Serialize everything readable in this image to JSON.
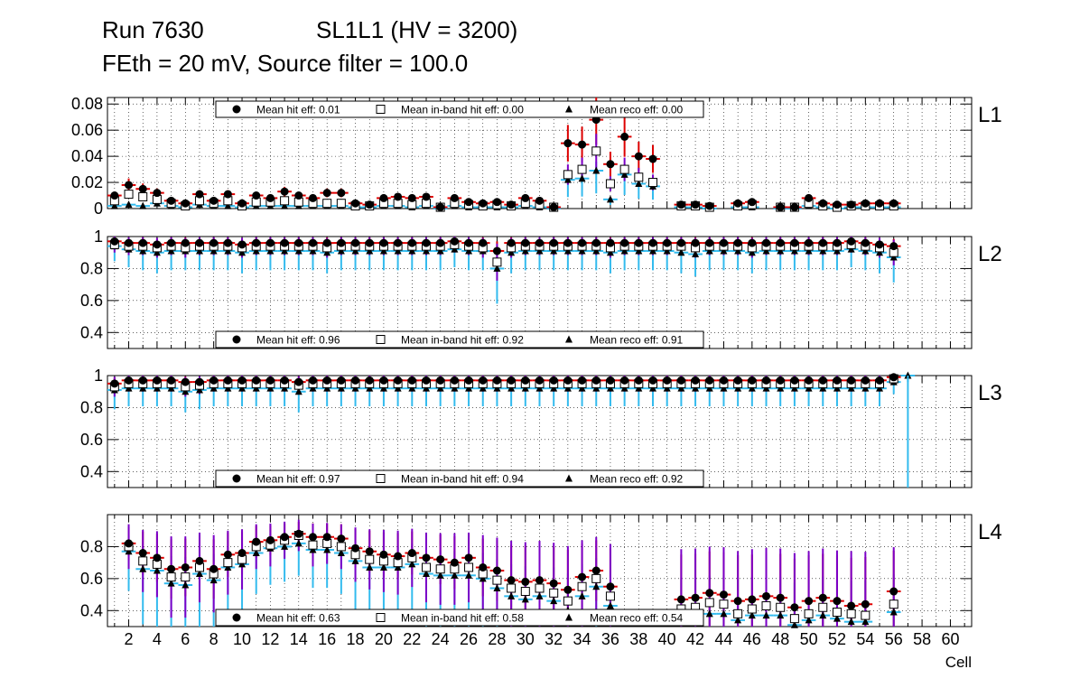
{
  "title": {
    "run": "Run 7630",
    "layer": "SL1L1 (HV = 3200)",
    "line2": "FEth = 20 mV, Source filter = 100.0"
  },
  "xlabel": "Cell",
  "x_ticks": [
    2,
    4,
    6,
    8,
    10,
    12,
    14,
    16,
    18,
    20,
    22,
    24,
    26,
    28,
    30,
    32,
    34,
    36,
    38,
    40,
    42,
    44,
    46,
    48,
    50,
    52,
    54,
    56,
    58,
    60
  ],
  "colors": {
    "hit": "#000000",
    "hit_err": "#dd0000",
    "inband_err": "#7b00c8",
    "reco_err": "#33bbee",
    "grid": "#000000"
  },
  "chart_data": [
    {
      "type": "scatter",
      "name": "L1",
      "label": "L1",
      "xlim": [
        0.5,
        61.5
      ],
      "ylim": [
        0,
        0.085
      ],
      "yticks": [
        "0",
        "0.02",
        "0.04",
        "0.06",
        "0.08"
      ],
      "ytick_values": [
        0,
        0.02,
        0.04,
        0.06,
        0.08
      ],
      "legend_pos": "top",
      "legend": {
        "hit": "Mean hit  eff: 0.01",
        "inband": "Mean in-band hit eff: 0.00",
        "reco": "Mean reco eff: 0.00"
      },
      "cells": [
        1,
        2,
        3,
        4,
        5,
        6,
        7,
        8,
        9,
        10,
        11,
        12,
        13,
        14,
        15,
        16,
        17,
        18,
        19,
        20,
        21,
        22,
        23,
        24,
        25,
        26,
        27,
        28,
        29,
        30,
        31,
        32,
        33,
        34,
        35,
        36,
        37,
        38,
        39,
        40,
        41,
        42,
        43,
        44,
        45,
        46,
        47,
        48,
        49,
        50,
        51,
        52,
        53,
        54,
        55,
        56
      ],
      "hit": [
        0.01,
        0.018,
        0.015,
        0.012,
        0.006,
        0.004,
        0.011,
        0.006,
        0.011,
        0.004,
        0.01,
        0.008,
        0.013,
        0.01,
        0.008,
        0.012,
        0.012,
        0.004,
        0.003,
        0.008,
        0.009,
        0.008,
        0.009,
        0.001,
        0.008,
        0.005,
        0.004,
        0.005,
        0.003,
        0.008,
        0.006,
        0.001,
        0.05,
        0.049,
        0.068,
        0.034,
        0.055,
        0.04,
        0.038,
        null,
        0.003,
        0.003,
        0.002,
        null,
        0.004,
        0.005,
        null,
        0.001,
        0.001,
        0.008,
        0.004,
        0.003,
        0.003,
        0.004,
        0.004,
        0.004
      ],
      "inband": [
        0.006,
        0.011,
        0.009,
        0.007,
        0.004,
        0.002,
        0.006,
        0.004,
        0.006,
        0.002,
        0.005,
        0.005,
        0.006,
        0.005,
        0.004,
        0.004,
        0.004,
        0.002,
        0.002,
        0.004,
        0.004,
        0.003,
        0.004,
        0.001,
        0.004,
        0.003,
        0.002,
        0.003,
        0.002,
        0.004,
        0.003,
        0.001,
        0.026,
        0.03,
        0.044,
        0.019,
        0.03,
        0.024,
        0.02,
        null,
        0.002,
        0.002,
        0.001,
        null,
        0.002,
        0.003,
        null,
        0.001,
        0.001,
        0.004,
        0.002,
        0.001,
        0.002,
        0.002,
        0.002,
        0.002
      ],
      "reco": [
        0.002,
        0.003,
        0.002,
        0.004,
        0.002,
        0.001,
        0.003,
        0.002,
        0.002,
        0.001,
        0.002,
        0.002,
        0.002,
        0.002,
        0.002,
        0.002,
        0.002,
        0.001,
        0.001,
        0.002,
        0.002,
        0.001,
        0.002,
        0.0,
        0.002,
        0.001,
        0.001,
        0.001,
        0.001,
        0.002,
        0.001,
        0.0,
        0.022,
        0.023,
        0.029,
        0.007,
        0.026,
        0.019,
        0.017,
        null,
        0.001,
        0.001,
        0.0,
        null,
        0.001,
        0.001,
        null,
        0.0,
        0.0,
        0.002,
        0.001,
        0.0,
        0.001,
        0.001,
        0.001,
        0.001
      ]
    },
    {
      "type": "scatter",
      "name": "L2",
      "label": "L2",
      "xlim": [
        0.5,
        61.5
      ],
      "ylim": [
        0.3,
        1.0
      ],
      "yticks": [
        "0.4",
        "0.6",
        "0.8",
        "1"
      ],
      "ytick_values": [
        0.4,
        0.6,
        0.8,
        1.0
      ],
      "legend_pos": "bottom",
      "legend": {
        "hit": "Mean hit  eff: 0.96",
        "inband": "Mean in-band hit eff: 0.92",
        "reco": "Mean reco eff: 0.91"
      },
      "cells": [
        1,
        2,
        3,
        4,
        5,
        6,
        7,
        8,
        9,
        10,
        11,
        12,
        13,
        14,
        15,
        16,
        17,
        18,
        19,
        20,
        21,
        22,
        23,
        24,
        25,
        26,
        27,
        28,
        29,
        30,
        31,
        32,
        33,
        34,
        35,
        36,
        37,
        38,
        39,
        40,
        41,
        42,
        43,
        44,
        45,
        46,
        47,
        48,
        49,
        50,
        51,
        52,
        53,
        54,
        55,
        56
      ],
      "hit": [
        0.97,
        0.96,
        0.96,
        0.95,
        0.96,
        0.96,
        0.96,
        0.96,
        0.96,
        0.95,
        0.96,
        0.96,
        0.96,
        0.96,
        0.96,
        0.96,
        0.96,
        0.96,
        0.96,
        0.96,
        0.96,
        0.96,
        0.96,
        0.96,
        0.97,
        0.96,
        0.96,
        0.91,
        0.96,
        0.96,
        0.96,
        0.96,
        0.96,
        0.96,
        0.96,
        0.96,
        0.96,
        0.96,
        0.96,
        0.96,
        0.96,
        0.96,
        0.96,
        0.96,
        0.96,
        0.96,
        0.96,
        0.96,
        0.96,
        0.96,
        0.96,
        0.96,
        0.97,
        0.96,
        0.95,
        0.94
      ],
      "inband": [
        0.95,
        0.94,
        0.94,
        0.93,
        0.94,
        0.93,
        0.94,
        0.94,
        0.94,
        0.93,
        0.94,
        0.94,
        0.94,
        0.94,
        0.94,
        0.93,
        0.94,
        0.94,
        0.94,
        0.94,
        0.94,
        0.94,
        0.94,
        0.94,
        0.95,
        0.94,
        0.93,
        0.84,
        0.93,
        0.94,
        0.94,
        0.94,
        0.94,
        0.94,
        0.94,
        0.93,
        0.94,
        0.94,
        0.94,
        0.94,
        0.94,
        0.93,
        0.94,
        0.94,
        0.94,
        0.93,
        0.94,
        0.94,
        0.94,
        0.94,
        0.94,
        0.94,
        0.95,
        0.94,
        0.93,
        0.9
      ],
      "reco": [
        0.94,
        0.92,
        0.91,
        0.9,
        0.91,
        0.91,
        0.91,
        0.91,
        0.91,
        0.9,
        0.91,
        0.91,
        0.91,
        0.91,
        0.91,
        0.9,
        0.91,
        0.91,
        0.91,
        0.91,
        0.91,
        0.91,
        0.91,
        0.91,
        0.92,
        0.91,
        0.91,
        0.8,
        0.9,
        0.91,
        0.91,
        0.91,
        0.91,
        0.91,
        0.91,
        0.9,
        0.91,
        0.91,
        0.91,
        0.91,
        0.9,
        0.89,
        0.91,
        0.91,
        0.91,
        0.9,
        0.91,
        0.91,
        0.91,
        0.91,
        0.91,
        0.91,
        0.92,
        0.91,
        0.9,
        0.87
      ]
    },
    {
      "type": "scatter",
      "name": "L3",
      "label": "L3",
      "xlim": [
        0.5,
        61.5
      ],
      "ylim": [
        0.3,
        1.0
      ],
      "yticks": [
        "0.4",
        "0.6",
        "0.8",
        "1"
      ],
      "ytick_values": [
        0.4,
        0.6,
        0.8,
        1.0
      ],
      "legend_pos": "bottom",
      "legend": {
        "hit": "Mean hit  eff: 0.97",
        "inband": "Mean in-band hit eff: 0.94",
        "reco": "Mean reco eff: 0.92"
      },
      "cells": [
        1,
        2,
        3,
        4,
        5,
        6,
        7,
        8,
        9,
        10,
        11,
        12,
        13,
        14,
        15,
        16,
        17,
        18,
        19,
        20,
        21,
        22,
        23,
        24,
        25,
        26,
        27,
        28,
        29,
        30,
        31,
        32,
        33,
        34,
        35,
        36,
        37,
        38,
        39,
        40,
        41,
        42,
        43,
        44,
        45,
        46,
        47,
        48,
        49,
        50,
        51,
        52,
        53,
        54,
        55,
        56,
        57
      ],
      "hit": [
        0.95,
        0.97,
        0.97,
        0.97,
        0.97,
        0.96,
        0.96,
        0.97,
        0.97,
        0.97,
        0.97,
        0.97,
        0.97,
        0.96,
        0.97,
        0.97,
        0.97,
        0.97,
        0.97,
        0.97,
        0.97,
        0.97,
        0.97,
        0.97,
        0.97,
        0.97,
        0.97,
        0.97,
        0.97,
        0.97,
        0.97,
        0.97,
        0.97,
        0.97,
        0.97,
        0.97,
        0.97,
        0.97,
        0.97,
        0.97,
        0.97,
        0.97,
        0.97,
        0.97,
        0.97,
        0.97,
        0.97,
        0.97,
        0.97,
        0.97,
        0.97,
        0.97,
        0.97,
        0.97,
        0.97,
        0.99,
        null
      ],
      "inband": [
        0.93,
        0.95,
        0.95,
        0.95,
        0.95,
        0.93,
        0.94,
        0.95,
        0.95,
        0.95,
        0.95,
        0.95,
        0.95,
        0.94,
        0.95,
        0.95,
        0.95,
        0.95,
        0.95,
        0.95,
        0.95,
        0.95,
        0.95,
        0.95,
        0.95,
        0.95,
        0.95,
        0.95,
        0.95,
        0.95,
        0.95,
        0.95,
        0.95,
        0.95,
        0.95,
        0.95,
        0.95,
        0.95,
        0.95,
        0.95,
        0.95,
        0.95,
        0.95,
        0.95,
        0.95,
        0.95,
        0.95,
        0.95,
        0.95,
        0.95,
        0.95,
        0.95,
        0.95,
        0.95,
        0.95,
        0.98,
        null
      ],
      "reco": [
        0.91,
        0.92,
        0.92,
        0.92,
        0.92,
        0.9,
        0.91,
        0.92,
        0.92,
        0.92,
        0.92,
        0.92,
        0.92,
        0.9,
        0.92,
        0.92,
        0.92,
        0.92,
        0.92,
        0.92,
        0.92,
        0.92,
        0.92,
        0.92,
        0.92,
        0.92,
        0.92,
        0.92,
        0.92,
        0.92,
        0.92,
        0.92,
        0.92,
        0.92,
        0.92,
        0.92,
        0.92,
        0.92,
        0.92,
        0.92,
        0.92,
        0.92,
        0.92,
        0.92,
        0.92,
        0.92,
        0.92,
        0.92,
        0.92,
        0.92,
        0.92,
        0.92,
        0.92,
        0.92,
        0.92,
        0.96,
        1.0
      ]
    },
    {
      "type": "scatter",
      "name": "L4",
      "label": "L4",
      "xlim": [
        0.5,
        61.5
      ],
      "ylim": [
        0.3,
        1.0
      ],
      "yticks": [
        "0.4",
        "0.6",
        "0.8"
      ],
      "ytick_values": [
        0.4,
        0.6,
        0.8
      ],
      "legend_pos": "bottom",
      "legend": {
        "hit": "Mean hit  eff: 0.63",
        "inband": "Mean in-band hit eff: 0.58",
        "reco": "Mean reco eff: 0.54"
      },
      "cells": [
        1,
        2,
        3,
        4,
        5,
        6,
        7,
        8,
        9,
        10,
        11,
        12,
        13,
        14,
        15,
        16,
        17,
        18,
        19,
        20,
        21,
        22,
        23,
        24,
        25,
        26,
        27,
        28,
        29,
        30,
        31,
        32,
        33,
        34,
        35,
        36,
        37,
        38,
        39,
        40,
        41,
        42,
        43,
        44,
        45,
        46,
        47,
        48,
        49,
        50,
        51,
        52,
        53,
        54,
        55,
        56
      ],
      "hit": [
        null,
        0.82,
        0.76,
        0.73,
        0.66,
        0.67,
        0.71,
        0.66,
        0.75,
        0.76,
        0.83,
        0.84,
        0.86,
        0.88,
        0.86,
        0.86,
        0.85,
        0.79,
        0.77,
        0.75,
        0.74,
        0.76,
        0.73,
        0.72,
        0.7,
        0.73,
        0.67,
        0.65,
        0.59,
        0.58,
        0.59,
        0.57,
        0.53,
        0.61,
        0.65,
        0.55,
        null,
        null,
        null,
        null,
        0.47,
        0.48,
        0.51,
        0.5,
        0.46,
        0.47,
        0.49,
        0.48,
        0.42,
        0.46,
        0.48,
        0.46,
        0.43,
        0.44,
        null,
        0.52
      ],
      "inband": [
        null,
        0.8,
        0.71,
        0.69,
        0.61,
        0.61,
        0.67,
        0.63,
        0.7,
        0.72,
        0.8,
        0.81,
        0.84,
        0.87,
        0.81,
        0.82,
        0.8,
        0.75,
        0.72,
        0.71,
        0.7,
        0.73,
        0.67,
        0.66,
        0.66,
        0.67,
        0.63,
        0.59,
        0.54,
        0.52,
        0.54,
        0.51,
        0.46,
        0.55,
        0.6,
        0.49,
        null,
        null,
        null,
        null,
        0.41,
        0.42,
        0.45,
        0.44,
        0.38,
        0.41,
        0.43,
        0.42,
        0.35,
        0.38,
        0.42,
        0.39,
        0.38,
        0.37,
        null,
        0.44
      ],
      "reco": [
        null,
        0.77,
        0.66,
        0.65,
        0.57,
        0.56,
        0.63,
        0.59,
        0.67,
        0.69,
        0.76,
        0.79,
        0.8,
        0.82,
        0.78,
        0.78,
        0.76,
        0.71,
        0.67,
        0.67,
        0.67,
        0.69,
        0.63,
        0.62,
        0.62,
        0.62,
        0.6,
        0.54,
        0.49,
        0.47,
        0.49,
        0.46,
        0.4,
        0.49,
        0.55,
        0.43,
        null,
        null,
        null,
        null,
        0.36,
        0.37,
        0.38,
        0.38,
        0.34,
        0.37,
        0.37,
        0.37,
        0.31,
        0.34,
        0.37,
        0.35,
        0.33,
        0.33,
        null,
        0.39
      ]
    }
  ]
}
